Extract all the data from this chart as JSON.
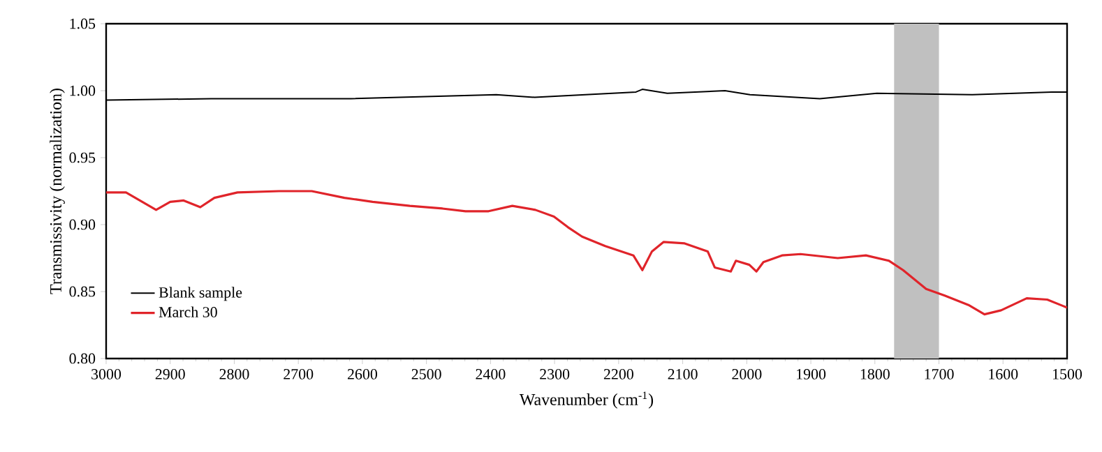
{
  "chart_data": {
    "type": "line",
    "xlabel": "Wavenumber (cm$^{-1}$)",
    "ylabel": "Transmissivity (normalization)",
    "xlim": [
      3000,
      1500
    ],
    "xticks": [
      3000,
      2900,
      2800,
      2700,
      2600,
      2500,
      2400,
      2300,
      2200,
      2100,
      2000,
      1900,
      1800,
      1700,
      1600,
      1500
    ],
    "ylim": [
      0.8,
      1.05
    ],
    "yticks": [
      {
        "value": 0.8,
        "label": "0.80"
      },
      {
        "value": 0.85,
        "label": "0.85"
      },
      {
        "value": 0.9,
        "label": "0.90"
      },
      {
        "value": 0.95,
        "label": "0.95"
      },
      {
        "value": 1.0,
        "label": "1.00"
      },
      {
        "value": 1.05,
        "label": "1.05"
      }
    ],
    "grid": false,
    "legend": "bottom left",
    "marker": "none",
    "line_style": "solid",
    "bands": [
      {
        "axis": "x",
        "from": 1770,
        "to": 1700,
        "color": "#c0c0c0"
      }
    ],
    "series": [
      {
        "name": "Blank sample",
        "color": "#000000",
        "x": [
          3000,
          2836,
          2618,
          2391,
          2331,
          2173,
          2163,
          2124,
          2034,
          1995,
          1886,
          1797,
          1648,
          1524,
          1500
        ],
        "values": [
          0.993,
          0.994,
          0.994,
          0.997,
          0.995,
          0.999,
          1.001,
          0.998,
          1.0,
          0.997,
          0.994,
          0.998,
          0.997,
          0.999,
          0.999
        ]
      },
      {
        "name": "March 30",
        "color": "#e0242a",
        "x": [
          3000,
          2969,
          2922,
          2900,
          2879,
          2853,
          2831,
          2795,
          2730,
          2679,
          2628,
          2584,
          2526,
          2475,
          2439,
          2403,
          2366,
          2330,
          2301,
          2279,
          2257,
          2221,
          2177,
          2163,
          2148,
          2130,
          2097,
          2061,
          2050,
          2025,
          2017,
          1996,
          1985,
          1974,
          1945,
          1916,
          1858,
          1814,
          1778,
          1756,
          1720,
          1691,
          1654,
          1629,
          1603,
          1563,
          1531,
          1505,
          1500
        ],
        "values": [
          0.924,
          0.924,
          0.911,
          0.917,
          0.918,
          0.913,
          0.92,
          0.924,
          0.925,
          0.925,
          0.92,
          0.917,
          0.914,
          0.912,
          0.91,
          0.91,
          0.914,
          0.911,
          0.906,
          0.898,
          0.891,
          0.884,
          0.877,
          0.866,
          0.88,
          0.887,
          0.886,
          0.88,
          0.868,
          0.865,
          0.873,
          0.87,
          0.865,
          0.872,
          0.877,
          0.878,
          0.875,
          0.877,
          0.873,
          0.866,
          0.852,
          0.847,
          0.84,
          0.833,
          0.836,
          0.845,
          0.844,
          0.839,
          0.838
        ]
      }
    ]
  }
}
